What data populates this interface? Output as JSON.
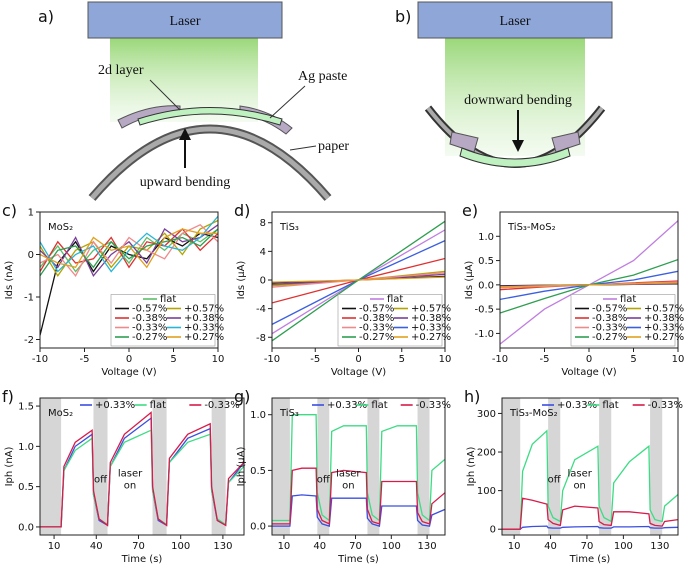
{
  "schematics": {
    "a": {
      "panel": "a)",
      "laser": "Laser",
      "layer": "2d layer",
      "paste": "Ag paste",
      "paper": "paper",
      "bending": "upward bending"
    },
    "b": {
      "panel": "b)",
      "laser": "Laser",
      "bending": "downward bending"
    }
  },
  "chart_data": [
    {
      "type": "line",
      "panel": "c)",
      "title": "MoS₂",
      "xlabel": "Voltage (V)",
      "ylabel": "Ids (nA)",
      "legend": "lower right",
      "x": [
        -10,
        -8,
        -6,
        -4,
        -2,
        0,
        2,
        4,
        6,
        8,
        10
      ],
      "xlim": [
        -10,
        10
      ],
      "xticks": [
        -10,
        -5,
        0,
        5,
        10
      ],
      "ylim": [
        -2.2,
        1.0
      ],
      "yticks": [
        -2,
        -1,
        0,
        1
      ],
      "series": [
        {
          "name": "flat",
          "color": "#5cbf6a",
          "values": [
            -0.3,
            0.2,
            -0.4,
            0.1,
            0.3,
            -0.2,
            0.4,
            0.1,
            0.5,
            0.3,
            0.6
          ]
        },
        {
          "name": "-0.57%",
          "color": "#111111",
          "values": [
            -1.9,
            -0.2,
            0.3,
            -0.4,
            0.2,
            0.0,
            -0.1,
            0.4,
            0.2,
            0.5,
            0.4
          ]
        },
        {
          "name": "+0.57%",
          "color": "#b5a300",
          "values": [
            0.2,
            -0.5,
            0.1,
            0.3,
            -0.3,
            0.2,
            0.1,
            0.5,
            0.0,
            0.6,
            0.8
          ]
        },
        {
          "name": "-0.38%",
          "color": "#e03030",
          "values": [
            -0.4,
            0.3,
            -0.2,
            -0.1,
            0.4,
            -0.3,
            0.3,
            0.2,
            0.6,
            0.1,
            0.5
          ]
        },
        {
          "name": "+0.38%",
          "color": "#7a3f9a",
          "values": [
            0.1,
            -0.3,
            0.4,
            -0.5,
            0.0,
            0.3,
            -0.2,
            0.6,
            0.3,
            0.4,
            0.7
          ]
        },
        {
          "name": "-0.33%",
          "color": "#f08a8a",
          "values": [
            -0.2,
            0.0,
            -0.5,
            0.3,
            -0.2,
            0.4,
            0.1,
            -0.1,
            0.5,
            0.7,
            0.3
          ]
        },
        {
          "name": "+0.33%",
          "color": "#29b6d6",
          "values": [
            0.3,
            -0.4,
            0.0,
            0.2,
            -0.4,
            0.1,
            0.5,
            0.2,
            0.1,
            0.4,
            0.9
          ]
        },
        {
          "name": "-0.27%",
          "color": "#2e9e50",
          "values": [
            -0.5,
            0.1,
            0.2,
            -0.3,
            0.3,
            -0.1,
            0.2,
            0.3,
            0.4,
            0.2,
            0.6
          ]
        },
        {
          "name": "+0.27%",
          "color": "#e0a020",
          "values": [
            0.0,
            -0.2,
            -0.3,
            0.4,
            0.1,
            0.2,
            -0.3,
            0.4,
            0.6,
            0.5,
            0.5
          ]
        }
      ]
    },
    {
      "type": "line",
      "panel": "d)",
      "title": "TiS₃",
      "xlabel": "Voltage (V)",
      "ylabel": "Ids (μA)",
      "legend": "lower right",
      "x": [
        -10,
        0,
        10
      ],
      "xlim": [
        -10,
        10
      ],
      "xticks": [
        -10,
        -5,
        0,
        5,
        10
      ],
      "ylim": [
        -9.5,
        9.5
      ],
      "yticks": [
        -8,
        -4,
        0,
        4,
        8
      ],
      "series": [
        {
          "name": "flat",
          "color": "#c07ee0",
          "values": [
            -7.5,
            0,
            7.0
          ]
        },
        {
          "name": "-0.57%",
          "color": "#111111",
          "values": [
            -0.4,
            0,
            0.5
          ]
        },
        {
          "name": "+0.57%",
          "color": "#b5a300",
          "values": [
            -0.8,
            0,
            1.2
          ]
        },
        {
          "name": "-0.38%",
          "color": "#e03030",
          "values": [
            -3.2,
            0,
            3.0
          ]
        },
        {
          "name": "+0.38%",
          "color": "#7a3f9a",
          "values": [
            -0.6,
            0,
            0.8
          ]
        },
        {
          "name": "-0.33%",
          "color": "#f08a8a",
          "values": [
            -1.0,
            0,
            1.0
          ]
        },
        {
          "name": "+0.33%",
          "color": "#3b5fe0",
          "values": [
            -6.2,
            0,
            5.5
          ]
        },
        {
          "name": "-0.27%",
          "color": "#2e9e50",
          "values": [
            -8.5,
            0,
            8.2
          ]
        },
        {
          "name": "+0.27%",
          "color": "#e0a020",
          "values": [
            -0.3,
            0,
            0.4
          ]
        }
      ]
    },
    {
      "type": "line",
      "panel": "e)",
      "title": "TiS₃-MoS₂",
      "xlabel": "Voltage (V)",
      "ylabel": "Ids (μA)",
      "legend": "lower right",
      "x": [
        -10,
        -5,
        0,
        5,
        10
      ],
      "xlim": [
        -10,
        10
      ],
      "xticks": [
        -10,
        -5,
        0,
        5,
        10
      ],
      "ylim": [
        -1.3,
        1.5
      ],
      "yticks": [
        {
          "value": -1.0,
          "label": "-1.0"
        },
        -0.5,
        {
          "value": 0,
          "label": "0.0"
        },
        0.5,
        {
          "value": 1.0,
          "label": "1.0"
        }
      ],
      "series": [
        {
          "name": "flat",
          "color": "#c07ee0",
          "values": [
            -1.22,
            -0.5,
            0,
            0.5,
            1.32
          ]
        },
        {
          "name": "-0.57%",
          "color": "#111111",
          "values": [
            -0.02,
            -0.01,
            0,
            0.01,
            0.02
          ]
        },
        {
          "name": "+0.57%",
          "color": "#b5a300",
          "values": [
            -0.05,
            -0.02,
            0,
            0.02,
            0.05
          ]
        },
        {
          "name": "-0.38%",
          "color": "#e03030",
          "values": [
            -0.1,
            -0.04,
            0,
            0.04,
            0.08
          ]
        },
        {
          "name": "+0.38%",
          "color": "#7a3f9a",
          "values": [
            -0.03,
            -0.01,
            0,
            0.01,
            0.03
          ]
        },
        {
          "name": "-0.33%",
          "color": "#f08a8a",
          "values": [
            -0.06,
            -0.03,
            0,
            0.03,
            0.06
          ]
        },
        {
          "name": "+0.33%",
          "color": "#3b5fe0",
          "values": [
            -0.3,
            -0.13,
            0,
            0.1,
            0.28
          ]
        },
        {
          "name": "-0.27%",
          "color": "#2e9e50",
          "values": [
            -0.58,
            -0.28,
            0,
            0.2,
            0.52
          ]
        },
        {
          "name": "+0.27%",
          "color": "#e0a020",
          "values": [
            -0.04,
            -0.02,
            0,
            0.02,
            0.04
          ]
        }
      ]
    },
    {
      "type": "line",
      "panel": "f)",
      "title": "MoS₂",
      "xlabel": "Time (s)",
      "ylabel": "Iph (nA)",
      "legend": "top",
      "annotations": [
        "off",
        "laser",
        "on"
      ],
      "shaded_regions": [
        [
          0,
          15
        ],
        [
          38,
          48
        ],
        [
          80,
          90
        ],
        [
          122,
          132
        ]
      ],
      "x": [
        0,
        15,
        17,
        25,
        37,
        38,
        42,
        48,
        50,
        60,
        79,
        80,
        84,
        90,
        92,
        105,
        121,
        122,
        126,
        132,
        134,
        145
      ],
      "xlim": [
        0,
        145
      ],
      "xticks": [
        10,
        40,
        70,
        100,
        130
      ],
      "ylim": [
        -0.1,
        1.6
      ],
      "yticks": [
        {
          "value": 0,
          "label": "0.0"
        },
        0.5,
        {
          "value": 1,
          "label": "1.0"
        },
        1.5
      ],
      "series": [
        {
          "name": "+0.33%",
          "color": "#3b4fe0",
          "values": [
            0,
            0,
            0.7,
            1.0,
            1.15,
            0.4,
            0.08,
            0.02,
            0.75,
            1.1,
            1.35,
            0.45,
            0.08,
            0.02,
            0.8,
            1.1,
            1.22,
            0.45,
            0.08,
            0.02,
            0.55,
            0.8
          ]
        },
        {
          "name": "flat",
          "color": "#3ddc84",
          "values": [
            0,
            0,
            0.7,
            0.95,
            1.1,
            0.4,
            0.1,
            0.03,
            0.75,
            1.05,
            1.2,
            0.45,
            0.1,
            0.03,
            0.8,
            1.05,
            1.15,
            0.45,
            0.1,
            0.03,
            0.55,
            0.75
          ]
        },
        {
          "name": "-0.33%",
          "color": "#d81b4a",
          "values": [
            0,
            0,
            0.75,
            1.05,
            1.2,
            0.45,
            0.1,
            0.02,
            0.8,
            1.15,
            1.42,
            0.5,
            0.1,
            0.02,
            0.85,
            1.15,
            1.28,
            0.5,
            0.08,
            0.02,
            0.6,
            0.8
          ]
        }
      ]
    },
    {
      "type": "line",
      "panel": "g)",
      "title": "TiS₃",
      "xlabel": "Time (s)",
      "ylabel": "Iph (μA)",
      "legend": "top",
      "annotations": [
        "off",
        "laser",
        "on"
      ],
      "shaded_regions": [
        [
          0,
          15
        ],
        [
          38,
          48
        ],
        [
          80,
          90
        ],
        [
          122,
          132
        ]
      ],
      "x": [
        0,
        15,
        17,
        25,
        37,
        38,
        42,
        48,
        50,
        60,
        79,
        80,
        84,
        90,
        92,
        105,
        121,
        122,
        126,
        132,
        134,
        145
      ],
      "xlim": [
        0,
        145
      ],
      "xticks": [
        10,
        40,
        70,
        100,
        130
      ],
      "ylim": [
        -0.08,
        1.15
      ],
      "yticks": [
        {
          "value": 0,
          "label": "0.0"
        },
        0.5,
        {
          "value": 1,
          "label": "1.0"
        }
      ],
      "series": [
        {
          "name": "+0.33%",
          "color": "#3b4fe0",
          "values": [
            0,
            0,
            0.27,
            0.28,
            0.27,
            0.08,
            0.02,
            0,
            0.25,
            0.25,
            0.25,
            0.07,
            0.02,
            0,
            0.18,
            0.18,
            0.18,
            0.05,
            0.01,
            0,
            0.1,
            0.15
          ]
        },
        {
          "name": "flat",
          "color": "#3ddc84",
          "values": [
            0.05,
            0.05,
            1.0,
            1.0,
            1.0,
            0.3,
            0.1,
            0.05,
            0.85,
            0.9,
            0.9,
            0.3,
            0.1,
            0.05,
            0.85,
            0.9,
            0.9,
            0.3,
            0.1,
            0.05,
            0.5,
            0.6
          ]
        },
        {
          "name": "-0.33%",
          "color": "#d81b4a",
          "values": [
            0.02,
            0.02,
            0.5,
            0.52,
            0.52,
            0.15,
            0.05,
            0.02,
            0.48,
            0.5,
            0.48,
            0.15,
            0.04,
            0.02,
            0.4,
            0.4,
            0.4,
            0.12,
            0.04,
            0.02,
            0.2,
            0.3
          ]
        }
      ]
    },
    {
      "type": "line",
      "panel": "h)",
      "title": "TiS₃-MoS₂",
      "xlabel": "Time (s)",
      "ylabel": "Iph (nA)",
      "legend": "top",
      "annotations": [
        "off",
        "laser",
        "on"
      ],
      "shaded_regions": [
        [
          0,
          15
        ],
        [
          38,
          48
        ],
        [
          80,
          90
        ],
        [
          122,
          132
        ]
      ],
      "x": [
        0,
        15,
        17,
        25,
        37,
        38,
        42,
        48,
        50,
        60,
        79,
        80,
        84,
        90,
        92,
        105,
        121,
        122,
        126,
        132,
        134,
        145
      ],
      "xlim": [
        0,
        145
      ],
      "xticks": [
        10,
        40,
        70,
        100,
        130
      ],
      "ylim": [
        -15,
        340
      ],
      "yticks": [
        0,
        100,
        200,
        300
      ],
      "series": [
        {
          "name": "+0.33%",
          "color": "#3b4fe0",
          "values": [
            0,
            0,
            5,
            7,
            8,
            4,
            3,
            3,
            5,
            6,
            7,
            4,
            3,
            3,
            6,
            6,
            7,
            4,
            3,
            3,
            4,
            5
          ]
        },
        {
          "name": "flat",
          "color": "#3ddc84",
          "values": [
            0,
            0,
            150,
            220,
            255,
            60,
            30,
            20,
            100,
            180,
            215,
            60,
            30,
            20,
            120,
            175,
            215,
            50,
            25,
            20,
            60,
            90
          ]
        },
        {
          "name": "-0.33%",
          "color": "#d81b4a",
          "values": [
            0,
            0,
            80,
            75,
            65,
            25,
            15,
            10,
            50,
            60,
            55,
            20,
            12,
            10,
            45,
            45,
            40,
            15,
            10,
            8,
            20,
            25
          ]
        }
      ]
    }
  ]
}
